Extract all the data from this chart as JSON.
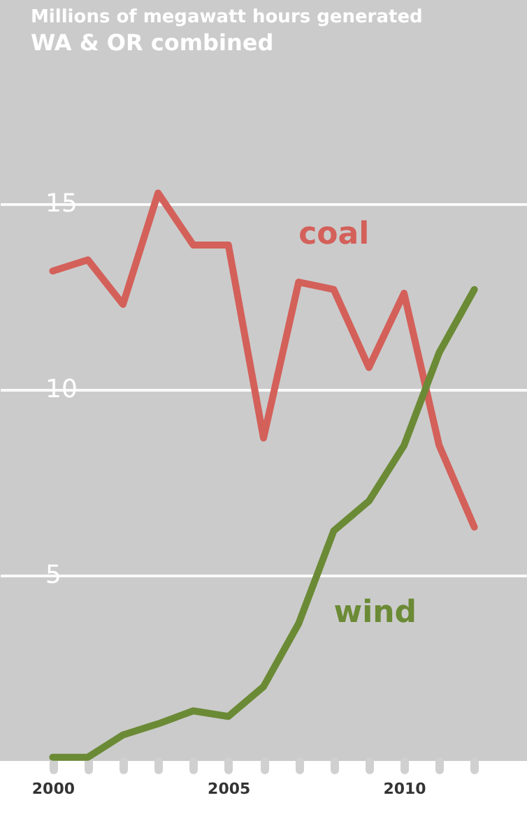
{
  "chart_data": {
    "type": "line",
    "title": "Millions of megawatt hours generated",
    "subtitle": "WA & OR combined",
    "x": [
      2000,
      2001,
      2002,
      2003,
      2004,
      2005,
      2006,
      2007,
      2008,
      2009,
      2010,
      2011,
      2012
    ],
    "series": [
      {
        "name": "coal",
        "color": "#d4605a",
        "values": [
          13.2,
          13.5,
          12.3,
          15.3,
          13.9,
          13.9,
          8.7,
          12.9,
          12.7,
          10.6,
          12.6,
          8.5,
          6.3
        ]
      },
      {
        "name": "wind",
        "color": "#6b8a35",
        "values": [
          0.1,
          0.1,
          0.7,
          1.0,
          1.35,
          1.2,
          2.0,
          3.7,
          6.2,
          7.0,
          8.5,
          11.0,
          12.7
        ]
      }
    ],
    "xlim": [
      1998.5,
      2013.5
    ],
    "xticks": [
      2000,
      {
        "value": 2001,
        "label": null
      },
      {
        "value": 2002,
        "label": null
      },
      {
        "value": 2003,
        "label": null
      },
      {
        "value": 2004,
        "label": null
      },
      2005,
      {
        "value": 2006,
        "label": null
      },
      {
        "value": 2007,
        "label": null
      },
      {
        "value": 2008,
        "label": null
      },
      {
        "value": 2009,
        "label": null
      },
      2010,
      {
        "value": 2011,
        "label": null
      },
      {
        "value": 2012,
        "label": null
      }
    ],
    "ylim": [
      0,
      20.5
    ],
    "yticks": [
      5,
      10,
      15
    ],
    "grid": "y",
    "legend": false,
    "marker": "none",
    "line_style": "solid"
  }
}
